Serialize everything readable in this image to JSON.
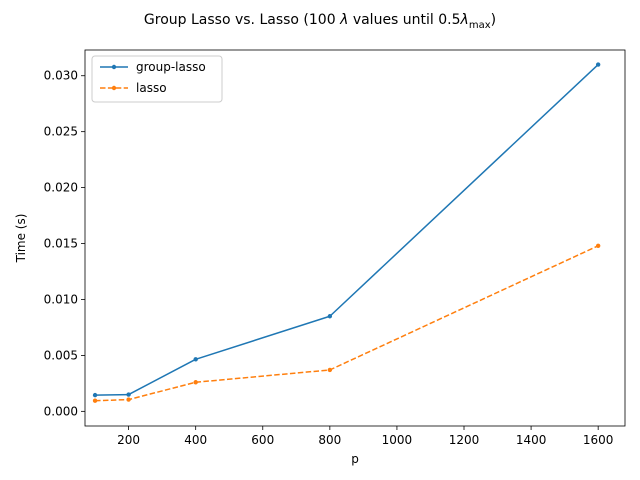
{
  "chart_data": {
    "type": "line",
    "title_prefix": "Group Lasso vs. Lasso (100",
    "title_lambda": "λ",
    "title_middle": "values until 0.5",
    "title_subscript": "max",
    "title_suffix": ")",
    "xlabel": "p",
    "ylabel": "Time (s)",
    "xlim": [
      70,
      1680
    ],
    "ylim": [
      -0.00131,
      0.0323
    ],
    "xticks": [
      200,
      400,
      600,
      800,
      1000,
      1200,
      1400,
      1600
    ],
    "xtick_labels": [
      "200",
      "400",
      "600",
      "800",
      "1000",
      "1200",
      "1400",
      "1600"
    ],
    "yticks": [
      0,
      0.005,
      0.01,
      0.015,
      0.02,
      0.025,
      0.03
    ],
    "ytick_labels": [
      "0.000",
      "0.005",
      "0.010",
      "0.015",
      "0.020",
      "0.025",
      "0.030"
    ],
    "grid": false,
    "legend_position": "top-left",
    "x": [
      100,
      200,
      400,
      800,
      1600
    ],
    "series": [
      {
        "name": "group-lasso",
        "values": [
          0.00145,
          0.0015,
          0.00465,
          0.0085,
          0.031
        ],
        "color": "#1f77b4",
        "style": "solid"
      },
      {
        "name": "lasso",
        "values": [
          0.00095,
          0.00105,
          0.0026,
          0.0037,
          0.0148
        ],
        "color": "#ff7f0e",
        "style": "dashed"
      }
    ]
  }
}
